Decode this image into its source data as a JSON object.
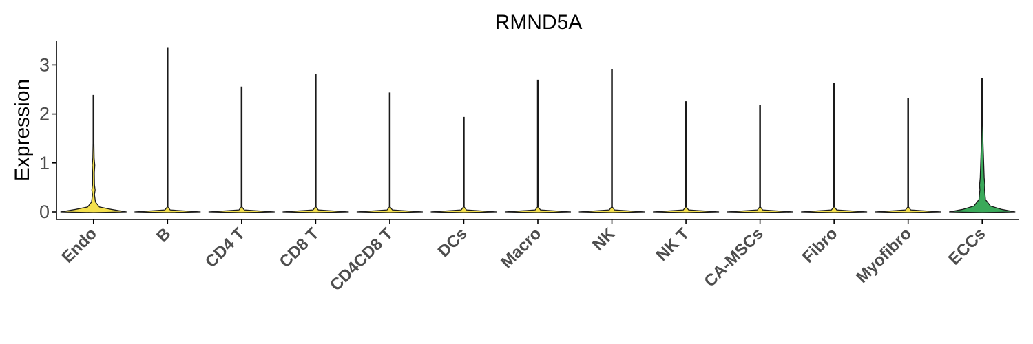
{
  "chart_data": {
    "type": "violin",
    "title": "RMND5A",
    "xlabel": "",
    "ylabel": "Expression",
    "ylim": [
      -0.15,
      3.5
    ],
    "yticks": [
      0,
      1,
      2,
      3
    ],
    "categories": [
      "Endo",
      "B",
      "CD4 T",
      "CD8 T",
      "CD4CD8 T",
      "DCs",
      "Macro",
      "NK",
      "NK T",
      "CA-MSCs",
      "Fibro",
      "Myofibro",
      "ECCs"
    ],
    "max_values": [
      2.38,
      3.34,
      2.55,
      2.81,
      2.43,
      1.93,
      2.69,
      2.9,
      2.25,
      2.17,
      2.63,
      2.32,
      2.73
    ],
    "colors": [
      "#f4e04d",
      "#f4e04d",
      "#f4e04d",
      "#f4e04d",
      "#f4e04d",
      "#f4e04d",
      "#f4e04d",
      "#f4e04d",
      "#f4e04d",
      "#f4e04d",
      "#f4e04d",
      "#f4e04d",
      "#3aa95a"
    ],
    "density_profiles": {
      "Endo": [
        [
          0.0,
          1.0
        ],
        [
          0.05,
          0.55
        ],
        [
          0.1,
          0.18
        ],
        [
          0.2,
          0.06
        ],
        [
          0.35,
          0.03
        ],
        [
          0.45,
          0.05
        ],
        [
          0.55,
          0.03
        ],
        [
          0.8,
          0.025
        ],
        [
          0.95,
          0.04
        ],
        [
          1.1,
          0.02
        ],
        [
          1.4,
          0.012
        ],
        [
          1.8,
          0.008
        ],
        [
          2.38,
          0.004
        ]
      ],
      "ECCs": [
        [
          0.0,
          1.0
        ],
        [
          0.05,
          0.6
        ],
        [
          0.12,
          0.25
        ],
        [
          0.25,
          0.1
        ],
        [
          0.45,
          0.07
        ],
        [
          0.55,
          0.08
        ],
        [
          0.7,
          0.06
        ],
        [
          0.9,
          0.05
        ],
        [
          1.1,
          0.04
        ],
        [
          1.4,
          0.025
        ],
        [
          1.8,
          0.012
        ],
        [
          2.2,
          0.006
        ],
        [
          2.73,
          0.003
        ]
      ],
      "default": [
        [
          0.0,
          1.0
        ],
        [
          0.04,
          0.08
        ],
        [
          0.1,
          0.01
        ],
        [
          3.5,
          0.004
        ]
      ]
    }
  }
}
